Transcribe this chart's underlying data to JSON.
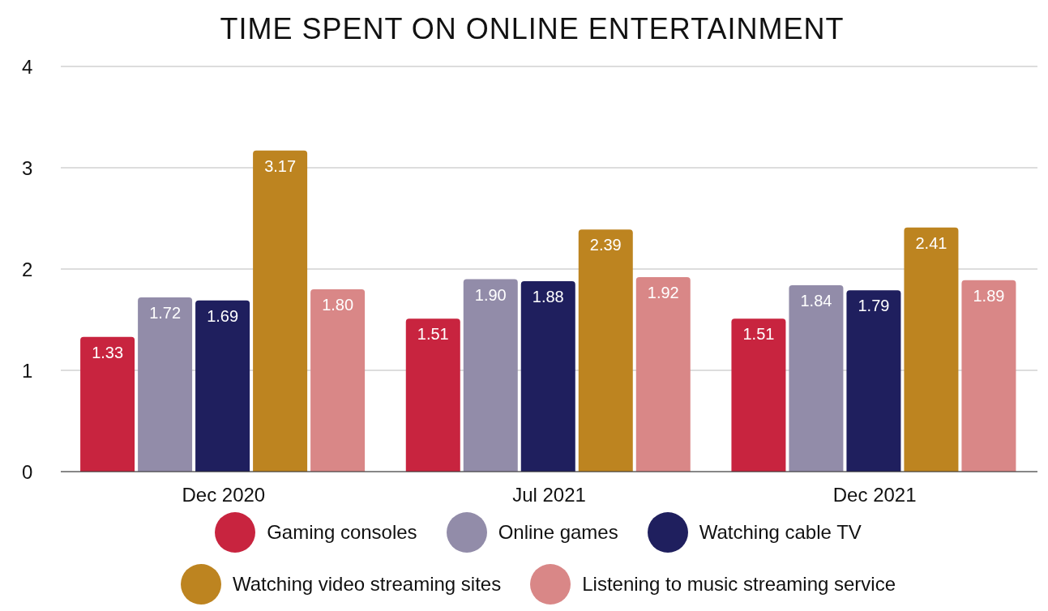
{
  "chart_data": {
    "type": "bar",
    "title": "TIME SPENT ON ONLINE ENTERTAINMENT",
    "categories": [
      "Dec 2020",
      "Jul 2021",
      "Dec 2021"
    ],
    "series": [
      {
        "name": "Gaming consoles",
        "color": "#c8243f",
        "values": [
          1.33,
          1.51,
          1.51
        ],
        "value_labels": [
          "1.33",
          "1.51",
          "1.51"
        ]
      },
      {
        "name": "Online games",
        "color": "#928ca9",
        "values": [
          1.72,
          1.9,
          1.84
        ],
        "value_labels": [
          "1.72",
          "1.90",
          "1.84"
        ]
      },
      {
        "name": "Watching cable TV",
        "color": "#1f1f5e",
        "values": [
          1.69,
          1.88,
          1.79
        ],
        "value_labels": [
          "1.69",
          "1.88",
          "1.79"
        ]
      },
      {
        "name": "Watching video streaming sites",
        "color": "#bd8420",
        "values": [
          3.17,
          2.39,
          2.41
        ],
        "value_labels": [
          "3.17",
          "2.39",
          "2.41"
        ]
      },
      {
        "name": "Listening to music streaming service",
        "color": "#d98787",
        "values": [
          1.8,
          1.92,
          1.89
        ],
        "value_labels": [
          "1.80",
          "1.92",
          "1.89"
        ]
      }
    ],
    "ylim": [
      0,
      4
    ],
    "yticks": [
      0,
      1,
      2,
      3,
      4
    ],
    "grid": "y",
    "legend": "bottom"
  }
}
